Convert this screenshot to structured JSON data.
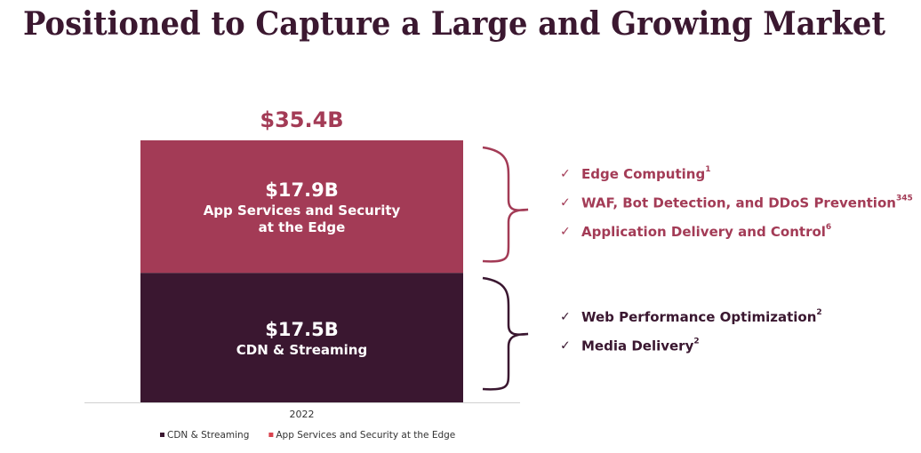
{
  "chart_data": {
    "type": "stacked-bar",
    "title": "Positioned to Capture a Large and Growing Market",
    "categories": [
      "2022"
    ],
    "series": [
      {
        "name": "CDN & Streaming",
        "color": "#3a1730",
        "legend_color": "#3a1730",
        "values": [
          17.5
        ],
        "value_labels": [
          "$17.5B"
        ]
      },
      {
        "name": "App Services and Security at the Edge",
        "color": "#a33b56",
        "legend_color": "#d9434f",
        "values": [
          17.9
        ],
        "value_labels": [
          "$17.9B"
        ]
      }
    ],
    "total": {
      "values": [
        35.4
      ],
      "value_labels": [
        "$35.4B"
      ],
      "color": "#a33b56"
    },
    "annotations": [
      {
        "series": 1,
        "color": "#a33b56",
        "items": [
          {
            "text": "Edge Computing",
            "sup": "1"
          },
          {
            "text": "WAF, Bot Detection, and DDoS Prevention",
            "sup": "345"
          },
          {
            "text": "Application Delivery and Control",
            "sup": "6"
          }
        ]
      },
      {
        "series": 0,
        "color": "#3a1730",
        "items": [
          {
            "text": "Web Performance Optimization",
            "sup": "2"
          },
          {
            "text": "Media Delivery",
            "sup": "2"
          }
        ]
      }
    ]
  }
}
